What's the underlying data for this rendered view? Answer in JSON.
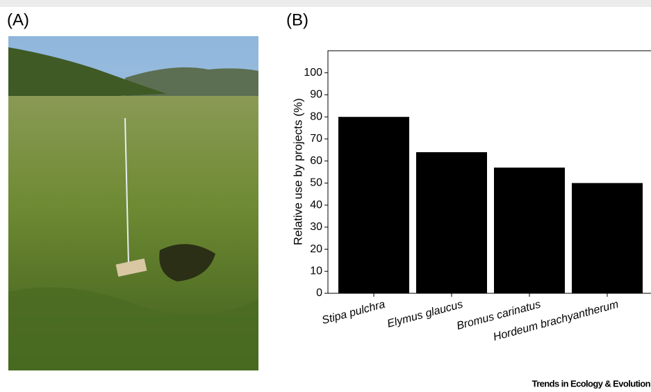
{
  "panel_labels": [
    "(A)",
    "(B)"
  ],
  "chart_data": {
    "type": "bar",
    "ylabel": "Relative use by projects (%)",
    "categories": [
      "Stipa pulchra",
      "Elymus glaucus",
      "Bromus carinatus",
      "Hordeum brachyantherum"
    ],
    "values": [
      80,
      64,
      57,
      50
    ],
    "color": "#000000",
    "ylim": [
      0,
      110
    ],
    "yticks": [
      0,
      10,
      20,
      30,
      40,
      50,
      60,
      70,
      80,
      90,
      100
    ],
    "grid": false
  },
  "footer": "Trends in Ecology & Evolution"
}
